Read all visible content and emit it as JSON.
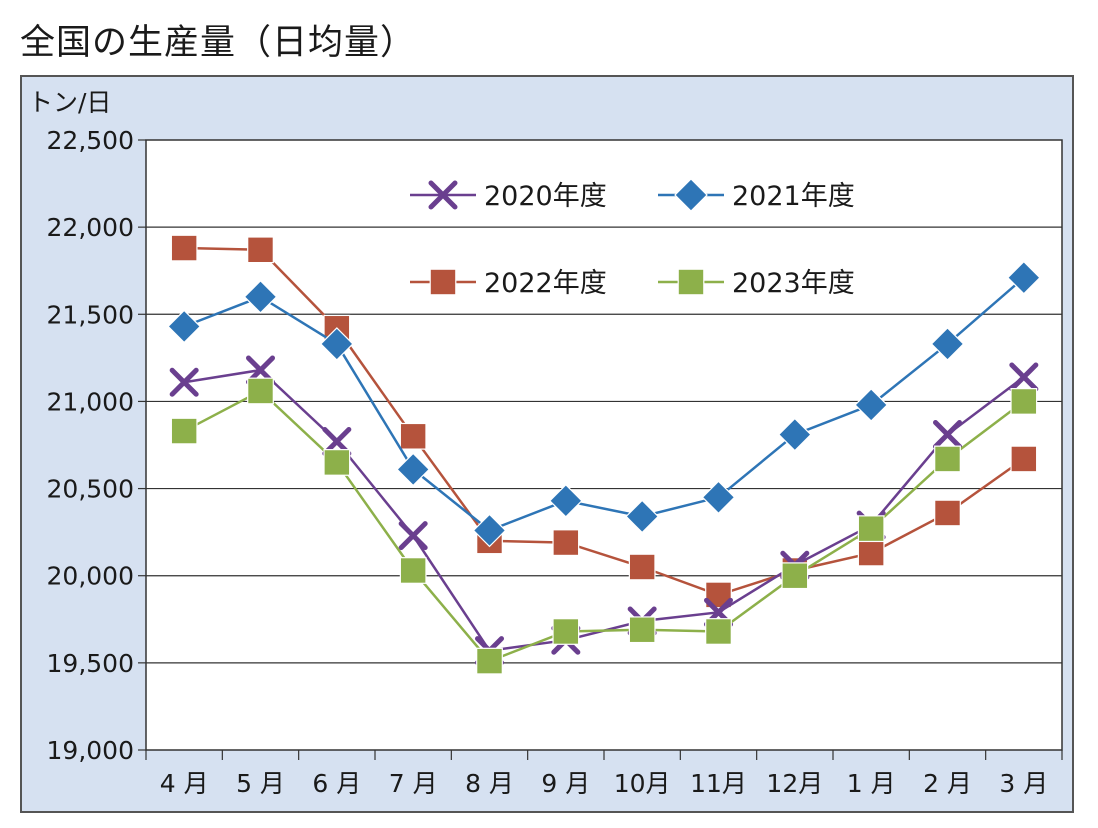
{
  "title": "全国の生産量（日均量）",
  "chart_data": {
    "type": "line",
    "title": "全国の生産量（日均量）",
    "ylabel": "トン/日",
    "xlabel": "",
    "ylim": [
      19000,
      22500
    ],
    "yticks": [
      19000,
      19500,
      20000,
      20500,
      21000,
      21500,
      22000,
      22500
    ],
    "ytick_labels": [
      "19,000",
      "19,500",
      "20,000",
      "20,500",
      "21,000",
      "21,500",
      "22,000",
      "22,500"
    ],
    "categories": [
      "4 月",
      "5 月",
      "6 月",
      "7 月",
      "8 月",
      "9 月",
      "10月",
      "11月",
      "12月",
      "1 月",
      "2 月",
      "3 月"
    ],
    "grid": true,
    "legend_placement": "top-center",
    "series": [
      {
        "name": "2020年度",
        "color": "#6a3f8f",
        "marker": "x",
        "values": [
          21110,
          21180,
          20770,
          20230,
          19570,
          19630,
          19740,
          19790,
          20060,
          20290,
          20810,
          21140
        ]
      },
      {
        "name": "2021年度",
        "color": "#2e75b6",
        "marker": "diamond",
        "values": [
          21430,
          21600,
          21330,
          20610,
          20260,
          20430,
          20340,
          20450,
          20810,
          20980,
          21330,
          21710
        ]
      },
      {
        "name": "2022年度",
        "color": "#b5533c",
        "marker": "square",
        "values": [
          21880,
          21870,
          21420,
          20800,
          20200,
          20190,
          20050,
          19890,
          20030,
          20130,
          20360,
          20670
        ]
      },
      {
        "name": "2023年度",
        "color": "#8db04a",
        "marker": "square",
        "values": [
          20830,
          21060,
          20650,
          20030,
          19510,
          19680,
          19690,
          19680,
          20000,
          20270,
          20670,
          21000
        ]
      }
    ]
  }
}
